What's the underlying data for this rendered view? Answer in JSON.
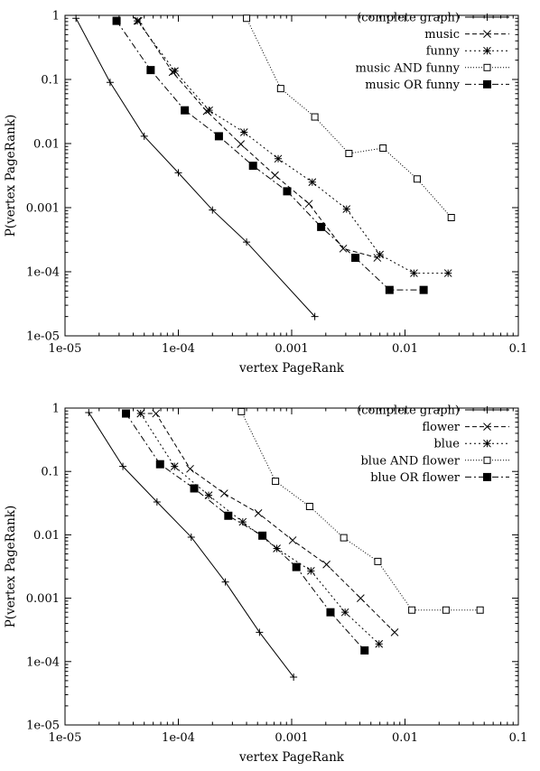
{
  "chart_data": [
    {
      "type": "line",
      "xlabel": "vertex PageRank",
      "ylabel": "P(vertex PageRank)",
      "xscale": "log",
      "yscale": "log",
      "xlim": [
        1e-05,
        0.1
      ],
      "ylim": [
        1e-05,
        1
      ],
      "x_ticks": [
        "1e-05",
        "1e-04",
        "0.001",
        "0.01",
        "0.1"
      ],
      "y_ticks": [
        "1e-05",
        "1e-04",
        "0.001",
        "0.01",
        "0.1",
        "1"
      ],
      "legend_position": "top-right",
      "grid": false,
      "series": [
        {
          "name": "(complete graph)",
          "marker": "plus",
          "dash": "solid",
          "x": [
            1.25e-05,
            2.5e-05,
            5e-05,
            0.0001,
            0.0002,
            0.0004,
            0.0016
          ],
          "y": [
            0.9,
            0.09,
            0.013,
            0.0035,
            0.00092,
            0.00029,
            2e-05
          ]
        },
        {
          "name": "music",
          "marker": "cross",
          "dash": "dashed",
          "x": [
            4.45e-05,
            8.9e-05,
            0.000178,
            0.000356,
            0.000712,
            0.00142,
            0.00285,
            0.0057
          ],
          "y": [
            0.82,
            0.13,
            0.032,
            0.0098,
            0.0032,
            0.00115,
            0.00023,
            0.000165
          ]
        },
        {
          "name": "funny",
          "marker": "star",
          "dash": "dotted",
          "x": [
            4.35e-05,
            9.3e-05,
            0.000187,
            0.00038,
            0.00076,
            0.00152,
            0.00305,
            0.006,
            0.012,
            0.024
          ],
          "y": [
            0.82,
            0.135,
            0.033,
            0.015,
            0.0058,
            0.0025,
            0.00095,
            0.000185,
            9.5e-05,
            9.5e-05
          ]
        },
        {
          "name": "music AND funny",
          "marker": "square-open",
          "dash": "fine-dotted",
          "x": [
            0.0004,
            0.0008,
            0.0016,
            0.0032,
            0.0064,
            0.0128,
            0.0256
          ],
          "y": [
            0.9,
            0.072,
            0.026,
            0.007,
            0.0085,
            0.0028,
            0.0007
          ]
        },
        {
          "name": "music OR funny",
          "marker": "square-filled",
          "dash": "dash-dot",
          "x": [
            2.85e-05,
            5.7e-05,
            0.000114,
            0.000228,
            0.000456,
            0.000912,
            0.00182,
            0.00365,
            0.0073,
            0.0146
          ],
          "y": [
            0.82,
            0.14,
            0.033,
            0.013,
            0.0045,
            0.0018,
            0.0005,
            0.000165,
            5.2e-05,
            5.2e-05
          ]
        }
      ]
    },
    {
      "type": "line",
      "xlabel": "vertex PageRank",
      "ylabel": "P(vertex PageRank)",
      "xscale": "log",
      "yscale": "log",
      "xlim": [
        1e-05,
        0.1
      ],
      "ylim": [
        1e-05,
        1
      ],
      "x_ticks": [
        "1e-05",
        "1e-04",
        "0.001",
        "0.01",
        "0.1"
      ],
      "y_ticks": [
        "1e-05",
        "1e-04",
        "0.001",
        "0.01",
        "0.1",
        "1"
      ],
      "legend_position": "top-right",
      "grid": false,
      "series": [
        {
          "name": "(complete graph)",
          "marker": "plus",
          "dash": "solid",
          "x": [
            1.62e-05,
            3.24e-05,
            6.48e-05,
            0.00013,
            0.00026,
            0.00052,
            0.00104
          ],
          "y": [
            0.85,
            0.12,
            0.033,
            0.0092,
            0.0018,
            0.00029,
            5.7e-05
          ]
        },
        {
          "name": "flower",
          "marker": "cross",
          "dash": "dashed",
          "x": [
            4.65e-05,
            6.35e-05,
            0.000127,
            0.000254,
            0.000508,
            0.00102,
            0.00203,
            0.00406,
            0.0081
          ],
          "y": [
            0.82,
            0.82,
            0.11,
            0.045,
            0.022,
            0.0082,
            0.0034,
            0.001,
            0.00029
          ]
        },
        {
          "name": "blue",
          "marker": "star",
          "dash": "dotted",
          "x": [
            4.65e-05,
            9.25e-05,
            0.000185,
            0.00037,
            0.00074,
            0.00148,
            0.00296,
            0.0059
          ],
          "y": [
            0.82,
            0.12,
            0.042,
            0.016,
            0.0061,
            0.0027,
            0.0006,
            0.00019
          ]
        },
        {
          "name": "blue AND flower",
          "marker": "square-open",
          "dash": "fine-dotted",
          "x": [
            0.00036,
            0.00072,
            0.00144,
            0.00288,
            0.00576,
            0.0115,
            0.023,
            0.046
          ],
          "y": [
            0.88,
            0.07,
            0.028,
            0.009,
            0.0038,
            0.00065,
            0.00065,
            0.00065
          ]
        },
        {
          "name": "blue OR flower",
          "marker": "square-filled",
          "dash": "dash-dot",
          "x": [
            3.45e-05,
            6.9e-05,
            0.000138,
            0.000276,
            0.000552,
            0.0011,
            0.0022,
            0.0044
          ],
          "y": [
            0.82,
            0.13,
            0.054,
            0.02,
            0.0097,
            0.0031,
            0.0006,
            0.00015
          ]
        }
      ]
    }
  ]
}
